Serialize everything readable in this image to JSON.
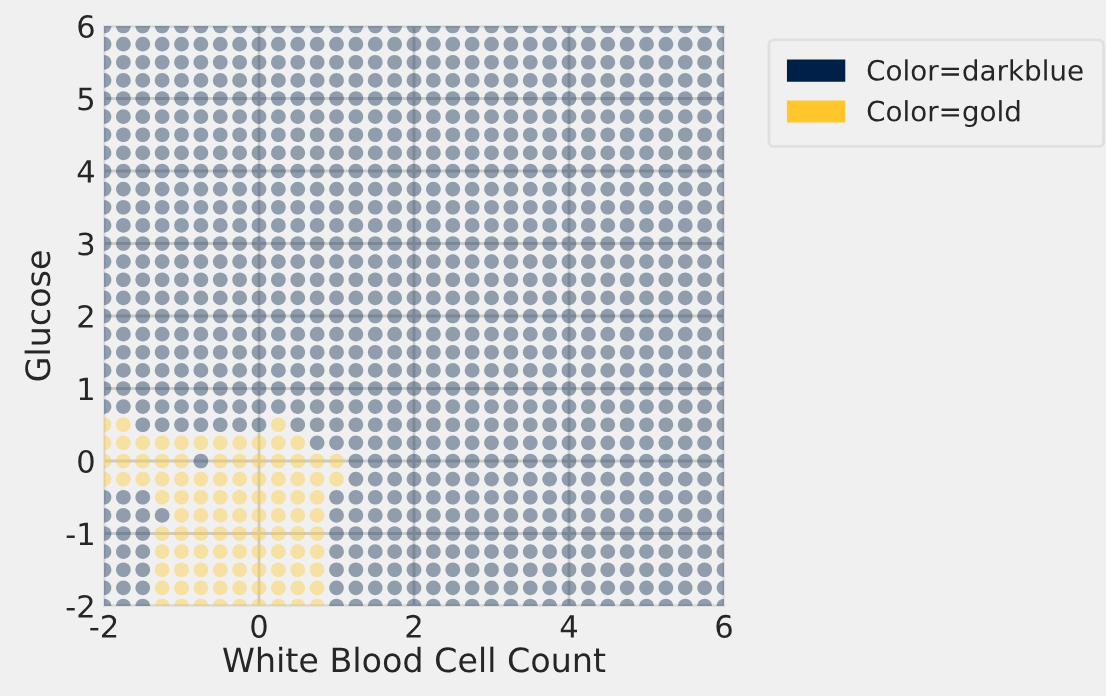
{
  "chart_data": {
    "type": "scatter",
    "xlabel": "White Blood Cell Count",
    "ylabel": "Glucose",
    "xlim": [
      -2,
      6
    ],
    "ylim": [
      -2,
      6
    ],
    "xticks": [
      -2,
      0,
      2,
      4,
      6
    ],
    "yticks": [
      -2,
      -1,
      0,
      1,
      2,
      3,
      4,
      5,
      6
    ],
    "grid": true,
    "legend": "top right",
    "marker": "circle",
    "series": [
      {
        "name": "Color=darkblue",
        "color": "#002147",
        "x": [
          -2,
          -1.75,
          -1.5,
          -1.25,
          -1,
          -0.75,
          -0.5,
          -0.25,
          0,
          0.25,
          0.5,
          0.75,
          1,
          1.25,
          1.5,
          1.75,
          2,
          2.25,
          2.5,
          2.75,
          3,
          3.25,
          3.5,
          3.75,
          4,
          4.25,
          4.5,
          4.75,
          5,
          5.25,
          5.5,
          5.75,
          6,
          -2,
          -1.75,
          -1.5,
          -1.25,
          -1,
          -0.75,
          -0.5,
          -0.25,
          0,
          0.25,
          0.5,
          0.75,
          1,
          1.25,
          1.5,
          1.75,
          2,
          2.25,
          2.5,
          2.75,
          3,
          3.25,
          3.5,
          3.75,
          4,
          4.25,
          4.5,
          4.75,
          5,
          5.25,
          5.5,
          5.75,
          6,
          -2,
          -1.75,
          -1.5,
          -1.25,
          -1,
          -0.75,
          -0.5,
          -0.25,
          0,
          0.25,
          0.5,
          0.75,
          1,
          1.25,
          1.5,
          1.75,
          2,
          2.25,
          2.5,
          2.75,
          3,
          3.25,
          3.5,
          3.75,
          4,
          4.25,
          4.5,
          4.75,
          5,
          5.25,
          5.5,
          5.75,
          6,
          -2,
          -1.75,
          -1.5,
          -1.25,
          -1,
          -0.75,
          -0.5,
          -0.25,
          0,
          0.25,
          0.5,
          0.75,
          1,
          1.25,
          1.5,
          1.75,
          2,
          2.25,
          2.5,
          2.75,
          3,
          3.25,
          3.5,
          3.75,
          4,
          4.25,
          4.5,
          4.75,
          5,
          5.25,
          5.5,
          5.75,
          6,
          -2,
          -1.75,
          -1.5,
          -1.25,
          -1,
          -0.75,
          -0.5,
          -0.25,
          0,
          0.25,
          0.5,
          0.75,
          1,
          1.25,
          1.5,
          1.75,
          2,
          2.25,
          2.5,
          2.75,
          3,
          3.25,
          3.5,
          3.75,
          4,
          4.25,
          4.5,
          4.75,
          5,
          5.25,
          5.5,
          5.75,
          6,
          -2,
          -1.75,
          -1.5,
          -1.25,
          -1,
          -0.75,
          -0.5,
          -0.25,
          0,
          0.25,
          0.5,
          0.75,
          1,
          1.25,
          1.5,
          1.75,
          2,
          2.25,
          2.5,
          2.75,
          3,
          3.25,
          3.5,
          3.75,
          4,
          4.25,
          4.5,
          4.75,
          5,
          5.25,
          5.5,
          5.75,
          6,
          -2,
          -1.75,
          -1.5,
          -1.25,
          -1,
          -0.75,
          -0.5,
          -0.25,
          0,
          0.25,
          0.5,
          0.75,
          1,
          1.25,
          1.5,
          1.75,
          2,
          2.25,
          2.5,
          2.75,
          3,
          3.25,
          3.5,
          3.75,
          4,
          4.25,
          4.5,
          4.75,
          5,
          5.25,
          5.5,
          5.75,
          6,
          -2,
          -1.75,
          -1.5,
          -1.25,
          -1,
          -0.75,
          -0.5,
          -0.25,
          0,
          0.25,
          0.5,
          0.75,
          1,
          1.25,
          1.5,
          1.75,
          2,
          2.25,
          2.5,
          2.75,
          3,
          3.25,
          3.5,
          3.75,
          4,
          4.25,
          4.5,
          4.75,
          5,
          5.25,
          5.5,
          5.75,
          6,
          -2,
          -1.75,
          -1.5,
          -1.25,
          -1,
          -0.75,
          -0.5,
          -0.25,
          0,
          0.25,
          0.5,
          0.75,
          1,
          1.25,
          1.5,
          1.75,
          2,
          2.25,
          2.5,
          2.75,
          3,
          3.25,
          3.5,
          3.75,
          4,
          4.25,
          4.5,
          4.75,
          5,
          5.25,
          5.5,
          5.75,
          6,
          -2,
          -1.75,
          -1.5,
          -1.25,
          -1,
          -0.75,
          -0.5,
          -0.25,
          0,
          0.25,
          0.5,
          0.75,
          1,
          1.25,
          1.5,
          1.75,
          2,
          2.25,
          2.5,
          2.75,
          3,
          3.25,
          3.5,
          3.75,
          4,
          4.25,
          4.5,
          4.75,
          5,
          5.25,
          5.5,
          5.75,
          6,
          -2,
          -1.75,
          -1.5,
          -1.25,
          -1,
          -0.75,
          -0.5,
          -0.25,
          0,
          0.25,
          0.5,
          0.75,
          1,
          1.25,
          1.5,
          1.75,
          2,
          2.25,
          2.5,
          2.75,
          3,
          3.25,
          3.5,
          3.75,
          4,
          4.25,
          4.5,
          4.75,
          5,
          5.25,
          5.5,
          5.75,
          6,
          -2,
          -1.75,
          -1.5,
          -1.25,
          -1,
          -0.75,
          -0.5,
          -0.25,
          0,
          0.25,
          0.5,
          0.75,
          1,
          1.25,
          1.5,
          1.75,
          2,
          2.25,
          2.5,
          2.75,
          3,
          3.25,
          3.5,
          3.75,
          4,
          4.25,
          4.5,
          4.75,
          5,
          5.25,
          5.5,
          5.75,
          6,
          -2,
          -1.75,
          -1.5,
          -1.25,
          -1,
          -0.75,
          -0.5,
          -0.25,
          0,
          0.25,
          0.5,
          0.75,
          1,
          1.25,
          1.5,
          1.75,
          2,
          2.25,
          2.5,
          2.75,
          3,
          3.25,
          3.5,
          3.75,
          4,
          4.25,
          4.5,
          4.75,
          5,
          5.25,
          5.5,
          5.75,
          6,
          -2,
          -1.75,
          -1.5,
          -1.25,
          -1,
          -0.75,
          -0.5,
          -0.25,
          0,
          0.25,
          0.5,
          0.75,
          1,
          1.25,
          1.5,
          1.75,
          2,
          2.25,
          2.5,
          2.75,
          3,
          3.25,
          3.5,
          3.75,
          4,
          4.25,
          4.5,
          4.75,
          5,
          5.25,
          5.5,
          5.75,
          6,
          -2,
          -1.75,
          -1.5,
          -1.25,
          -1,
          -0.75,
          -0.5,
          -0.25,
          0,
          0.25,
          0.5,
          0.75,
          1,
          1.25,
          1.5,
          1.75,
          2,
          2.25,
          2.5,
          2.75,
          3,
          3.25,
          3.5,
          3.75,
          4,
          4.25,
          4.5,
          4.75,
          5,
          5.25,
          5.5,
          5.75,
          6,
          -2,
          -1.75,
          -1.5,
          -1.25,
          -1,
          -0.75,
          -0.5,
          -0.25,
          0,
          0.25,
          0.5,
          0.75,
          1,
          1.25,
          1.5,
          1.75,
          2,
          2.25,
          2.5,
          2.75,
          3,
          3.25,
          3.5,
          3.75,
          4,
          4.25,
          4.5,
          4.75,
          5,
          5.25,
          5.5,
          5.75,
          6,
          -2,
          -1.75,
          -1.5,
          -1.25,
          -1,
          -0.75,
          -0.5,
          -0.25,
          0,
          0.25,
          0.5,
          0.75,
          1,
          1.25,
          1.5,
          1.75,
          2,
          2.25,
          2.5,
          2.75,
          3,
          3.25,
          3.5,
          3.75,
          4,
          4.25,
          4.5,
          4.75,
          5,
          5.25,
          5.5,
          5.75,
          6,
          -2,
          -1.75,
          -1.5,
          -1.25,
          -1,
          -0.75,
          -0.5,
          -0.25,
          0,
          0.25,
          0.5,
          0.75,
          1,
          1.25,
          1.5,
          1.75,
          2,
          2.25,
          2.5,
          2.75,
          3,
          3.25,
          3.5,
          3.75,
          4,
          4.25,
          4.5,
          4.75,
          5,
          5.25,
          5.5,
          5.75,
          6,
          -2,
          -1.75,
          -1.5,
          -1.25,
          -1,
          -0.75,
          -0.5,
          -0.25,
          0,
          0.25,
          0.5,
          0.75,
          1,
          1.25,
          1.5,
          1.75,
          2,
          2.25,
          2.5,
          2.75,
          3,
          3.25,
          3.5,
          3.75,
          4,
          4.25,
          4.5,
          4.75,
          5,
          5.25,
          5.5,
          5.75,
          6,
          -2,
          -1.75,
          -1.5,
          -1.25,
          -1,
          -0.75,
          -0.5,
          -0.25,
          0,
          0.25,
          0.5,
          0.75,
          1,
          1.25,
          1.5,
          1.75,
          2,
          2.25,
          2.5,
          2.75,
          3,
          3.25,
          3.5,
          3.75,
          4,
          4.25,
          4.5,
          4.75,
          5,
          5.25,
          5.5,
          5.75,
          6,
          -2,
          -1.75,
          -1.5,
          -1.25,
          -1,
          -0.75,
          -0.5,
          -0.25,
          0,
          0.25,
          0.5,
          0.75,
          1,
          1.25,
          1.5,
          1.75,
          2,
          2.25,
          2.5,
          2.75,
          3,
          3.25,
          3.5,
          3.75,
          4,
          4.25,
          4.5,
          4.75,
          5,
          5.25,
          5.5,
          5.75,
          6,
          -2,
          -1.75,
          -1.5,
          -1.25,
          -1,
          -0.75,
          -0.5,
          -0.25,
          0,
          0.25,
          0.5,
          0.75,
          1,
          1.25,
          1.5,
          1.75,
          2,
          2.25,
          2.5,
          2.75,
          3,
          3.25,
          3.5,
          3.75,
          4,
          4.25,
          4.5,
          4.75,
          5,
          5.25,
          5.5,
          5.75,
          6,
          -1.5,
          -1.25,
          -1,
          -0.75,
          -0.5,
          -0.25,
          0,
          0.5,
          0.75,
          1,
          1.25,
          1.5,
          1.75,
          2,
          2.25,
          2.5,
          2.75,
          3,
          3.25,
          3.5,
          3.75,
          4,
          4.25,
          4.5,
          4.75,
          5,
          5.25,
          5.5,
          5.75,
          6,
          0.75,
          1,
          1.25,
          1.5,
          1.75,
          2,
          2.25,
          2.5,
          2.75,
          3,
          3.25,
          3.5,
          3.75,
          4,
          4.25,
          4.5,
          4.75,
          5,
          5.25,
          5.5,
          5.75,
          6,
          -0.75,
          1.25,
          1.5,
          1.75,
          2,
          2.25,
          2.5,
          2.75,
          3,
          3.25,
          3.5,
          3.75,
          4,
          4.25,
          4.5,
          4.75,
          5,
          5.25,
          5.5,
          5.75,
          6,
          1.25,
          1.5,
          1.75,
          2,
          2.25,
          2.5,
          2.75,
          3,
          3.25,
          3.5,
          3.75,
          4,
          4.25,
          4.5,
          4.75,
          5,
          5.25,
          5.5,
          5.75,
          6,
          -2,
          -1.75,
          -1.5,
          1,
          1.25,
          1.5,
          1.75,
          2,
          2.25,
          2.5,
          2.75,
          3,
          3.25,
          3.5,
          3.75,
          4,
          4.25,
          4.5,
          4.75,
          5,
          5.25,
          5.5,
          5.75,
          6,
          -2,
          -1.75,
          -1.5,
          -1.25,
          1,
          1.25,
          1.5,
          1.75,
          2,
          2.25,
          2.5,
          2.75,
          3,
          3.25,
          3.5,
          3.75,
          4,
          4.25,
          4.5,
          4.75,
          5,
          5.25,
          5.5,
          5.75,
          6,
          -2,
          -1.75,
          -1.5,
          1,
          1.25,
          1.5,
          1.75,
          2,
          2.25,
          2.5,
          2.75,
          3,
          3.25,
          3.5,
          3.75,
          4,
          4.25,
          4.5,
          4.75,
          5,
          5.25,
          5.5,
          5.75,
          6,
          -2,
          -1.75,
          -1.5,
          1,
          1.25,
          1.5,
          1.75,
          2,
          2.25,
          2.5,
          2.75,
          3,
          3.25,
          3.5,
          3.75,
          4,
          4.25,
          4.5,
          4.75,
          5,
          5.25,
          5.5,
          5.75,
          6,
          -2,
          -1.75,
          -1.5,
          1,
          1.25,
          1.5,
          1.75,
          2,
          2.25,
          2.5,
          2.75,
          3,
          3.25,
          3.5,
          3.75,
          4,
          4.25,
          4.5,
          4.75,
          5,
          5.25,
          5.5,
          5.75,
          6,
          -2,
          -1.75,
          -1.5,
          1,
          1.25,
          1.5,
          1.75,
          2,
          2.25,
          2.5,
          2.75,
          3,
          3.25,
          3.5,
          3.75,
          4,
          4.25,
          4.5,
          4.75,
          5,
          5.25,
          5.5,
          5.75,
          6,
          -2,
          -1.75,
          -1.5,
          1,
          1.25,
          1.5,
          1.75,
          2,
          2.25,
          2.5,
          2.75,
          3,
          3.25,
          3.5,
          3.75,
          4,
          4.25,
          4.5,
          4.75,
          5,
          5.25,
          5.5,
          5.75,
          6
        ],
        "values": [
          6,
          6,
          6,
          6,
          6,
          6,
          6,
          6,
          6,
          6,
          6,
          6,
          6,
          6,
          6,
          6,
          6,
          6,
          6,
          6,
          6,
          6,
          6,
          6,
          6,
          6,
          6,
          6,
          6,
          6,
          6,
          6,
          6,
          5.75,
          5.75,
          5.75,
          5.75,
          5.75,
          5.75,
          5.75,
          5.75,
          5.75,
          5.75,
          5.75,
          5.75,
          5.75,
          5.75,
          5.75,
          5.75,
          5.75,
          5.75,
          5.75,
          5.75,
          5.75,
          5.75,
          5.75,
          5.75,
          5.75,
          5.75,
          5.75,
          5.75,
          5.75,
          5.75,
          5.75,
          5.75,
          5.75,
          5.5,
          5.5,
          5.5,
          5.5,
          5.5,
          5.5,
          5.5,
          5.5,
          5.5,
          5.5,
          5.5,
          5.5,
          5.5,
          5.5,
          5.5,
          5.5,
          5.5,
          5.5,
          5.5,
          5.5,
          5.5,
          5.5,
          5.5,
          5.5,
          5.5,
          5.5,
          5.5,
          5.5,
          5.5,
          5.5,
          5.5,
          5.5,
          5.5,
          5.25,
          5.25,
          5.25,
          5.25,
          5.25,
          5.25,
          5.25,
          5.25,
          5.25,
          5.25,
          5.25,
          5.25,
          5.25,
          5.25,
          5.25,
          5.25,
          5.25,
          5.25,
          5.25,
          5.25,
          5.25,
          5.25,
          5.25,
          5.25,
          5.25,
          5.25,
          5.25,
          5.25,
          5.25,
          5.25,
          5.25,
          5.25,
          5.25,
          5,
          5,
          5,
          5,
          5,
          5,
          5,
          5,
          5,
          5,
          5,
          5,
          5,
          5,
          5,
          5,
          5,
          5,
          5,
          5,
          5,
          5,
          5,
          5,
          5,
          5,
          5,
          5,
          5,
          5,
          5,
          5,
          5,
          4.75,
          4.75,
          4.75,
          4.75,
          4.75,
          4.75,
          4.75,
          4.75,
          4.75,
          4.75,
          4.75,
          4.75,
          4.75,
          4.75,
          4.75,
          4.75,
          4.75,
          4.75,
          4.75,
          4.75,
          4.75,
          4.75,
          4.75,
          4.75,
          4.75,
          4.75,
          4.75,
          4.75,
          4.75,
          4.75,
          4.75,
          4.75,
          4.75,
          4.5,
          4.5,
          4.5,
          4.5,
          4.5,
          4.5,
          4.5,
          4.5,
          4.5,
          4.5,
          4.5,
          4.5,
          4.5,
          4.5,
          4.5,
          4.5,
          4.5,
          4.5,
          4.5,
          4.5,
          4.5,
          4.5,
          4.5,
          4.5,
          4.5,
          4.5,
          4.5,
          4.5,
          4.5,
          4.5,
          4.5,
          4.5,
          4.5,
          4.25,
          4.25,
          4.25,
          4.25,
          4.25,
          4.25,
          4.25,
          4.25,
          4.25,
          4.25,
          4.25,
          4.25,
          4.25,
          4.25,
          4.25,
          4.25,
          4.25,
          4.25,
          4.25,
          4.25,
          4.25,
          4.25,
          4.25,
          4.25,
          4.25,
          4.25,
          4.25,
          4.25,
          4.25,
          4.25,
          4.25,
          4.25,
          4.25,
          4,
          4,
          4,
          4,
          4,
          4,
          4,
          4,
          4,
          4,
          4,
          4,
          4,
          4,
          4,
          4,
          4,
          4,
          4,
          4,
          4,
          4,
          4,
          4,
          4,
          4,
          4,
          4,
          4,
          4,
          4,
          4,
          4,
          3.75,
          3.75,
          3.75,
          3.75,
          3.75,
          3.75,
          3.75,
          3.75,
          3.75,
          3.75,
          3.75,
          3.75,
          3.75,
          3.75,
          3.75,
          3.75,
          3.75,
          3.75,
          3.75,
          3.75,
          3.75,
          3.75,
          3.75,
          3.75,
          3.75,
          3.75,
          3.75,
          3.75,
          3.75,
          3.75,
          3.75,
          3.75,
          3.75,
          3.5,
          3.5,
          3.5,
          3.5,
          3.5,
          3.5,
          3.5,
          3.5,
          3.5,
          3.5,
          3.5,
          3.5,
          3.5,
          3.5,
          3.5,
          3.5,
          3.5,
          3.5,
          3.5,
          3.5,
          3.5,
          3.5,
          3.5,
          3.5,
          3.5,
          3.5,
          3.5,
          3.5,
          3.5,
          3.5,
          3.5,
          3.5,
          3.5,
          3.25,
          3.25,
          3.25,
          3.25,
          3.25,
          3.25,
          3.25,
          3.25,
          3.25,
          3.25,
          3.25,
          3.25,
          3.25,
          3.25,
          3.25,
          3.25,
          3.25,
          3.25,
          3.25,
          3.25,
          3.25,
          3.25,
          3.25,
          3.25,
          3.25,
          3.25,
          3.25,
          3.25,
          3.25,
          3.25,
          3.25,
          3.25,
          3.25,
          3,
          3,
          3,
          3,
          3,
          3,
          3,
          3,
          3,
          3,
          3,
          3,
          3,
          3,
          3,
          3,
          3,
          3,
          3,
          3,
          3,
          3,
          3,
          3,
          3,
          3,
          3,
          3,
          3,
          3,
          3,
          3,
          3,
          2.75,
          2.75,
          2.75,
          2.75,
          2.75,
          2.75,
          2.75,
          2.75,
          2.75,
          2.75,
          2.75,
          2.75,
          2.75,
          2.75,
          2.75,
          2.75,
          2.75,
          2.75,
          2.75,
          2.75,
          2.75,
          2.75,
          2.75,
          2.75,
          2.75,
          2.75,
          2.75,
          2.75,
          2.75,
          2.75,
          2.75,
          2.75,
          2.75,
          2.5,
          2.5,
          2.5,
          2.5,
          2.5,
          2.5,
          2.5,
          2.5,
          2.5,
          2.5,
          2.5,
          2.5,
          2.5,
          2.5,
          2.5,
          2.5,
          2.5,
          2.5,
          2.5,
          2.5,
          2.5,
          2.5,
          2.5,
          2.5,
          2.5,
          2.5,
          2.5,
          2.5,
          2.5,
          2.5,
          2.5,
          2.5,
          2.5,
          2.25,
          2.25,
          2.25,
          2.25,
          2.25,
          2.25,
          2.25,
          2.25,
          2.25,
          2.25,
          2.25,
          2.25,
          2.25,
          2.25,
          2.25,
          2.25,
          2.25,
          2.25,
          2.25,
          2.25,
          2.25,
          2.25,
          2.25,
          2.25,
          2.25,
          2.25,
          2.25,
          2.25,
          2.25,
          2.25,
          2.25,
          2.25,
          2.25,
          2,
          2,
          2,
          2,
          2,
          2,
          2,
          2,
          2,
          2,
          2,
          2,
          2,
          2,
          2,
          2,
          2,
          2,
          2,
          2,
          2,
          2,
          2,
          2,
          2,
          2,
          2,
          2,
          2,
          2,
          2,
          2,
          2,
          1.75,
          1.75,
          1.75,
          1.75,
          1.75,
          1.75,
          1.75,
          1.75,
          1.75,
          1.75,
          1.75,
          1.75,
          1.75,
          1.75,
          1.75,
          1.75,
          1.75,
          1.75,
          1.75,
          1.75,
          1.75,
          1.75,
          1.75,
          1.75,
          1.75,
          1.75,
          1.75,
          1.75,
          1.75,
          1.75,
          1.75,
          1.75,
          1.75,
          1.5,
          1.5,
          1.5,
          1.5,
          1.5,
          1.5,
          1.5,
          1.5,
          1.5,
          1.5,
          1.5,
          1.5,
          1.5,
          1.5,
          1.5,
          1.5,
          1.5,
          1.5,
          1.5,
          1.5,
          1.5,
          1.5,
          1.5,
          1.5,
          1.5,
          1.5,
          1.5,
          1.5,
          1.5,
          1.5,
          1.5,
          1.5,
          1.5,
          1.25,
          1.25,
          1.25,
          1.25,
          1.25,
          1.25,
          1.25,
          1.25,
          1.25,
          1.25,
          1.25,
          1.25,
          1.25,
          1.25,
          1.25,
          1.25,
          1.25,
          1.25,
          1.25,
          1.25,
          1.25,
          1.25,
          1.25,
          1.25,
          1.25,
          1.25,
          1.25,
          1.25,
          1.25,
          1.25,
          1.25,
          1.25,
          1.25,
          1,
          1,
          1,
          1,
          1,
          1,
          1,
          1,
          1,
          1,
          1,
          1,
          1,
          1,
          1,
          1,
          1,
          1,
          1,
          1,
          1,
          1,
          1,
          1,
          1,
          1,
          1,
          1,
          1,
          1,
          1,
          1,
          1,
          0.75,
          0.75,
          0.75,
          0.75,
          0.75,
          0.75,
          0.75,
          0.75,
          0.75,
          0.75,
          0.75,
          0.75,
          0.75,
          0.75,
          0.75,
          0.75,
          0.75,
          0.75,
          0.75,
          0.75,
          0.75,
          0.75,
          0.75,
          0.75,
          0.75,
          0.75,
          0.75,
          0.75,
          0.75,
          0.75,
          0.75,
          0.75,
          0.75,
          0.5,
          0.5,
          0.5,
          0.5,
          0.5,
          0.5,
          0.5,
          0.5,
          0.5,
          0.5,
          0.5,
          0.5,
          0.5,
          0.5,
          0.5,
          0.5,
          0.5,
          0.5,
          0.5,
          0.5,
          0.5,
          0.5,
          0.5,
          0.5,
          0.5,
          0.5,
          0.5,
          0.5,
          0.5,
          0.5,
          0.25,
          0.25,
          0.25,
          0.25,
          0.25,
          0.25,
          0.25,
          0.25,
          0.25,
          0.25,
          0.25,
          0.25,
          0.25,
          0.25,
          0.25,
          0.25,
          0.25,
          0.25,
          0.25,
          0.25,
          0.25,
          0.25,
          0,
          0,
          0,
          0,
          0,
          0,
          0,
          0,
          0,
          0,
          0,
          0,
          0,
          0,
          0,
          0,
          0,
          0,
          0,
          0,
          0,
          -0.25,
          -0.25,
          -0.25,
          -0.25,
          -0.25,
          -0.25,
          -0.25,
          -0.25,
          -0.25,
          -0.25,
          -0.25,
          -0.25,
          -0.25,
          -0.25,
          -0.25,
          -0.25,
          -0.25,
          -0.25,
          -0.25,
          -0.25,
          -0.5,
          -0.5,
          -0.5,
          -0.5,
          -0.5,
          -0.5,
          -0.5,
          -0.5,
          -0.5,
          -0.5,
          -0.5,
          -0.5,
          -0.5,
          -0.5,
          -0.5,
          -0.5,
          -0.5,
          -0.5,
          -0.5,
          -0.5,
          -0.5,
          -0.5,
          -0.5,
          -0.5,
          -0.75,
          -0.75,
          -0.75,
          -0.75,
          -0.75,
          -0.75,
          -0.75,
          -0.75,
          -0.75,
          -0.75,
          -0.75,
          -0.75,
          -0.75,
          -0.75,
          -0.75,
          -0.75,
          -0.75,
          -0.75,
          -0.75,
          -0.75,
          -0.75,
          -0.75,
          -0.75,
          -0.75,
          -0.75,
          -1,
          -1,
          -1,
          -1,
          -1,
          -1,
          -1,
          -1,
          -1,
          -1,
          -1,
          -1,
          -1,
          -1,
          -1,
          -1,
          -1,
          -1,
          -1,
          -1,
          -1,
          -1,
          -1,
          -1,
          -1.25,
          -1.25,
          -1.25,
          -1.25,
          -1.25,
          -1.25,
          -1.25,
          -1.25,
          -1.25,
          -1.25,
          -1.25,
          -1.25,
          -1.25,
          -1.25,
          -1.25,
          -1.25,
          -1.25,
          -1.25,
          -1.25,
          -1.25,
          -1.25,
          -1.25,
          -1.25,
          -1.25,
          -1.5,
          -1.5,
          -1.5,
          -1.5,
          -1.5,
          -1.5,
          -1.5,
          -1.5,
          -1.5,
          -1.5,
          -1.5,
          -1.5,
          -1.5,
          -1.5,
          -1.5,
          -1.5,
          -1.5,
          -1.5,
          -1.5,
          -1.5,
          -1.5,
          -1.5,
          -1.5,
          -1.5,
          -1.75,
          -1.75,
          -1.75,
          -1.75,
          -1.75,
          -1.75,
          -1.75,
          -1.75,
          -1.75,
          -1.75,
          -1.75,
          -1.75,
          -1.75,
          -1.75,
          -1.75,
          -1.75,
          -1.75,
          -1.75,
          -1.75,
          -1.75,
          -1.75,
          -1.75,
          -1.75,
          -1.75,
          -2,
          -2,
          -2,
          -2,
          -2,
          -2,
          -2,
          -2,
          -2,
          -2,
          -2,
          -2,
          -2,
          -2,
          -2,
          -2,
          -2,
          -2,
          -2,
          -2,
          -2,
          -2,
          -2,
          -2
        ]
      },
      {
        "name": "Color=gold",
        "color": "#ffc72c",
        "x": [
          -2,
          -1.75,
          0.25,
          -2,
          -1.75,
          -1.5,
          -1.25,
          -1,
          -0.75,
          -0.5,
          -0.25,
          0,
          0.25,
          0.5,
          -2,
          -1.75,
          -1.5,
          -1.25,
          -1,
          -0.5,
          -0.25,
          0,
          0.25,
          0.5,
          0.75,
          1,
          -2,
          -1.75,
          -1.5,
          -1.25,
          -1,
          -0.75,
          -0.5,
          -0.25,
          0,
          0.25,
          0.5,
          0.75,
          1,
          -1.25,
          -1,
          -0.75,
          -0.5,
          -0.25,
          0,
          0.25,
          0.5,
          0.75,
          -1,
          -0.75,
          -0.5,
          -0.25,
          0,
          0.25,
          0.5,
          0.75,
          -1.25,
          -1,
          -0.75,
          -0.5,
          -0.25,
          0,
          0.25,
          0.5,
          0.75,
          -1.25,
          -1,
          -0.75,
          -0.5,
          -0.25,
          0,
          0.25,
          0.5,
          0.75,
          -1.25,
          -1,
          -0.75,
          -0.5,
          -0.25,
          0,
          0.25,
          0.5,
          0.75,
          -1.25,
          -1,
          -0.75,
          -0.5,
          -0.25,
          0,
          0.25,
          0.5,
          0.75,
          -1.25,
          -1,
          -0.75,
          -0.5,
          -0.25,
          0,
          0.25,
          0.5,
          0.75
        ],
        "values": [
          0.5,
          0.5,
          0.5,
          0.25,
          0.25,
          0.25,
          0.25,
          0.25,
          0.25,
          0.25,
          0.25,
          0.25,
          0.25,
          0.25,
          0,
          0,
          0,
          0,
          0,
          0,
          0,
          0,
          0,
          0,
          0,
          0,
          -0.25,
          -0.25,
          -0.25,
          -0.25,
          -0.25,
          -0.25,
          -0.25,
          -0.25,
          -0.25,
          -0.25,
          -0.25,
          -0.25,
          -0.25,
          -0.5,
          -0.5,
          -0.5,
          -0.5,
          -0.5,
          -0.5,
          -0.5,
          -0.5,
          -0.5,
          -0.75,
          -0.75,
          -0.75,
          -0.75,
          -0.75,
          -0.75,
          -0.75,
          -0.75,
          -1,
          -1,
          -1,
          -1,
          -1,
          -1,
          -1,
          -1,
          -1,
          -1.25,
          -1.25,
          -1.25,
          -1.25,
          -1.25,
          -1.25,
          -1.25,
          -1.25,
          -1.25,
          -1.5,
          -1.5,
          -1.5,
          -1.5,
          -1.5,
          -1.5,
          -1.5,
          -1.5,
          -1.5,
          -1.75,
          -1.75,
          -1.75,
          -1.75,
          -1.75,
          -1.75,
          -1.75,
          -1.75,
          -1.75,
          -2,
          -2,
          -2,
          -2,
          -2,
          -2,
          -2,
          -2,
          -2
        ]
      }
    ]
  }
}
